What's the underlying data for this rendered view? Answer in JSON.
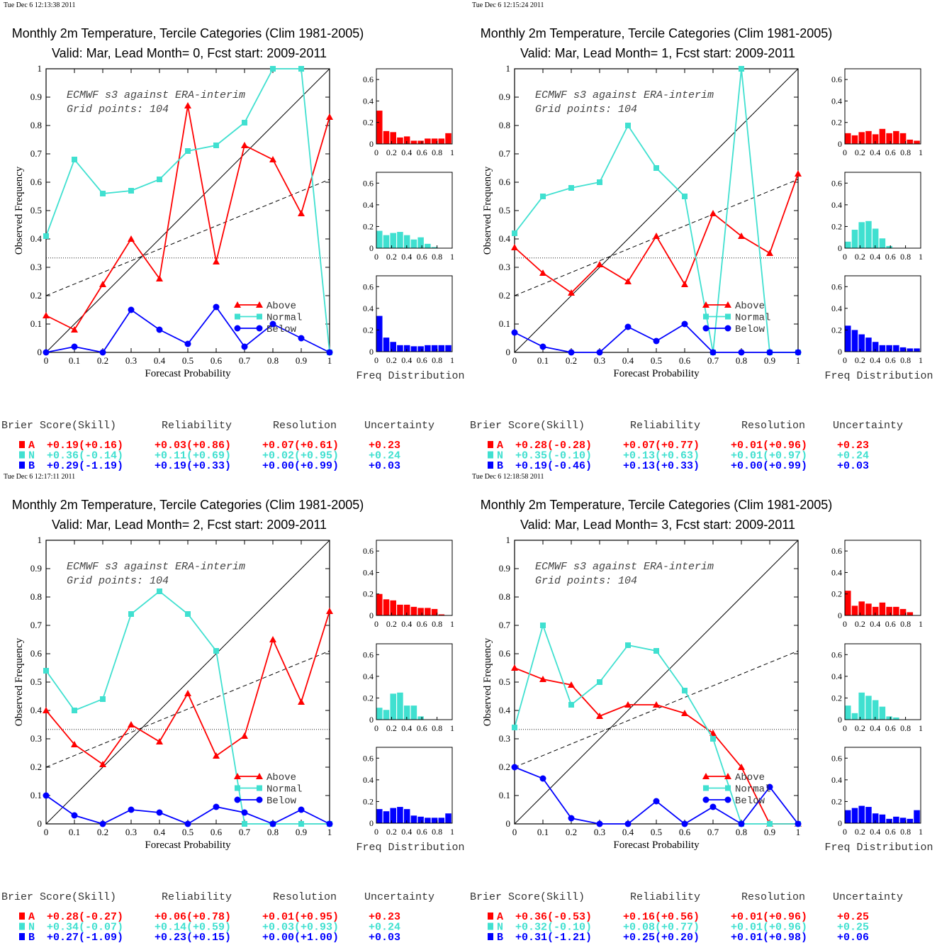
{
  "colors": {
    "above": "#ff0000",
    "normal": "#40e0d0",
    "below": "#0000ff",
    "axis": "#000000"
  },
  "panels": [
    {
      "timestamp": "Tue Dec  6 12:13:38 2011",
      "title1": "Monthly 2m Temperature, Tercile Categories (Clim 1981-2005)",
      "title2": "Valid: Mar, Lead Month= 0, Fcst start: 2009-2011",
      "note1": "ECMWF s3 against ERA-interim",
      "note2": "Grid points:  104",
      "ylabel": "Observed Frequency",
      "xlabel": "Forecast Probability",
      "freq_label": "Freq Distribution",
      "legend": {
        "above": "Above",
        "normal": "Normal",
        "below": "Below"
      },
      "score_header": {
        "bs": "Brier Score(Skill)",
        "rel": "Reliability",
        "res": "Resolution",
        "unc": "Uncertainty"
      },
      "scores": [
        {
          "cat": "A",
          "bs": "+0.19(+0.16)",
          "rel": "+0.03(+0.86)",
          "res": "+0.07(+0.61)",
          "unc": "+0.23"
        },
        {
          "cat": "N",
          "bs": "+0.36(-0.14)",
          "rel": "+0.11(+0.69)",
          "res": "+0.02(+0.95)",
          "unc": "+0.24"
        },
        {
          "cat": "B",
          "bs": "+0.29(-1.19)",
          "rel": "+0.19(+0.33)",
          "res": "+0.00(+0.99)",
          "unc": "+0.03"
        }
      ],
      "chart_data": {
        "type": "line",
        "x": [
          0,
          0.1,
          0.2,
          0.3,
          0.4,
          0.5,
          0.6,
          0.7,
          0.8,
          0.9,
          1.0
        ],
        "xlim": [
          0,
          1
        ],
        "ylim": [
          0,
          1
        ],
        "xticks": [
          "0",
          "0.1",
          "0.2",
          "0.3",
          "0.4",
          "0.5",
          "0.6",
          "0.7",
          "0.8",
          "0.9",
          "1"
        ],
        "yticks": [
          "0",
          "0.1",
          "0.2",
          "0.3",
          "0.4",
          "0.5",
          "0.6",
          "0.7",
          "0.8",
          "0.9",
          "1"
        ],
        "climatology": 0.333,
        "skill_line": [
          0.2,
          0.61
        ],
        "series": [
          {
            "name": "Above",
            "values": [
              0.13,
              0.08,
              0.24,
              0.4,
              0.26,
              0.87,
              0.32,
              0.73,
              0.68,
              0.49,
              0.83
            ]
          },
          {
            "name": "Normal",
            "values": [
              0.41,
              0.68,
              0.56,
              0.57,
              0.61,
              0.71,
              0.73,
              0.81,
              1.0,
              1.0,
              0.0
            ]
          },
          {
            "name": "Below",
            "values": [
              0.0,
              0.02,
              0.0,
              0.15,
              0.08,
              0.03,
              0.16,
              0.02,
              0.1,
              0.05,
              0.0
            ]
          }
        ],
        "hist_ylim": [
          0,
          0.7
        ],
        "hist_yticks": [
          "0",
          "0.2",
          "0.4",
          "0.6"
        ],
        "hist_xticks": [
          "0",
          "0.2",
          "0.4",
          "0.6",
          "0.8",
          "1"
        ],
        "histograms": [
          {
            "name": "Above",
            "values": [
              0.31,
              0.12,
              0.11,
              0.06,
              0.07,
              0.03,
              0.03,
              0.05,
              0.05,
              0.05,
              0.1
            ]
          },
          {
            "name": "Normal",
            "values": [
              0.16,
              0.12,
              0.14,
              0.15,
              0.12,
              0.08,
              0.1,
              0.04,
              0.01,
              0.0,
              0.0
            ]
          },
          {
            "name": "Below",
            "values": [
              0.33,
              0.13,
              0.09,
              0.06,
              0.06,
              0.05,
              0.05,
              0.06,
              0.06,
              0.06,
              0.06
            ]
          }
        ]
      }
    },
    {
      "timestamp": "Tue Dec  6 12:15:24 2011",
      "title1": "Monthly 2m Temperature, Tercile Categories (Clim 1981-2005)",
      "title2": "Valid: Mar, Lead Month= 1, Fcst start: 2009-2011",
      "note1": "ECMWF s3 against ERA-interim",
      "note2": "Grid points:  104",
      "ylabel": "Observed Frequency",
      "xlabel": "Forecast Probability",
      "freq_label": "Freq Distribution",
      "legend": {
        "above": "Above",
        "normal": "Normal",
        "below": "Below"
      },
      "score_header": {
        "bs": "Brier Score(Skill)",
        "rel": "Reliability",
        "res": "Resolution",
        "unc": "Uncertainty"
      },
      "scores": [
        {
          "cat": "A",
          "bs": "+0.28(-0.28)",
          "rel": "+0.07(+0.77)",
          "res": "+0.01(+0.96)",
          "unc": "+0.23"
        },
        {
          "cat": "N",
          "bs": "+0.35(-0.10)",
          "rel": "+0.13(+0.63)",
          "res": "+0.01(+0.97)",
          "unc": "+0.24"
        },
        {
          "cat": "B",
          "bs": "+0.19(-0.46)",
          "rel": "+0.13(+0.33)",
          "res": "+0.00(+0.99)",
          "unc": "+0.03"
        }
      ],
      "chart_data": {
        "type": "line",
        "x": [
          0,
          0.1,
          0.2,
          0.3,
          0.4,
          0.5,
          0.6,
          0.7,
          0.8,
          0.9,
          1.0
        ],
        "xlim": [
          0,
          1
        ],
        "ylim": [
          0,
          1
        ],
        "xticks": [
          "0",
          "0.1",
          "0.2",
          "0.3",
          "0.4",
          "0.5",
          "0.6",
          "0.7",
          "0.8",
          "0.9",
          "1"
        ],
        "yticks": [
          "0",
          "0.1",
          "0.2",
          "0.3",
          "0.4",
          "0.5",
          "0.6",
          "0.7",
          "0.8",
          "0.9",
          "1"
        ],
        "climatology": 0.333,
        "skill_line": [
          0.2,
          0.61
        ],
        "series": [
          {
            "name": "Above",
            "values": [
              0.37,
              0.28,
              0.21,
              0.31,
              0.25,
              0.41,
              0.24,
              0.49,
              0.41,
              0.35,
              0.63
            ]
          },
          {
            "name": "Normal",
            "values": [
              0.42,
              0.55,
              0.58,
              0.6,
              0.8,
              0.65,
              0.55,
              0.0,
              1.0,
              0.0,
              0.0
            ]
          },
          {
            "name": "Below",
            "values": [
              0.07,
              0.02,
              0.0,
              0.0,
              0.09,
              0.04,
              0.1,
              0.0,
              0.0,
              0.0,
              0.0
            ]
          }
        ],
        "hist_ylim": [
          0,
          0.7
        ],
        "hist_yticks": [
          "0",
          "0.2",
          "0.4",
          "0.6"
        ],
        "hist_xticks": [
          "0",
          "0.2",
          "0.4",
          "0.6",
          "0.8",
          "1"
        ],
        "histograms": [
          {
            "name": "Above",
            "values": [
              0.1,
              0.08,
              0.11,
              0.12,
              0.09,
              0.14,
              0.1,
              0.12,
              0.1,
              0.04,
              0.03
            ]
          },
          {
            "name": "Normal",
            "values": [
              0.06,
              0.17,
              0.24,
              0.25,
              0.18,
              0.09,
              0.02,
              0.0,
              0.0,
              0.0,
              0.0
            ]
          },
          {
            "name": "Below",
            "values": [
              0.24,
              0.2,
              0.16,
              0.13,
              0.09,
              0.06,
              0.06,
              0.06,
              0.04,
              0.03,
              0.03
            ]
          }
        ]
      }
    },
    {
      "timestamp": "Tue Dec  6 12:17:11 2011",
      "title1": "Monthly 2m Temperature, Tercile Categories (Clim 1981-2005)",
      "title2": "Valid: Mar, Lead Month= 2, Fcst start: 2009-2011",
      "note1": "ECMWF s3 against ERA-interim",
      "note2": "Grid points:  104",
      "ylabel": "Observed Frequency",
      "xlabel": "Forecast Probability",
      "freq_label": "Freq Distribution",
      "legend": {
        "above": "Above",
        "normal": "Normal",
        "below": "Below"
      },
      "score_header": {
        "bs": "Brier Score(Skill)",
        "rel": "Reliability",
        "res": "Resolution",
        "unc": "Uncertainty"
      },
      "scores": [
        {
          "cat": "A",
          "bs": "+0.28(-0.27)",
          "rel": "+0.06(+0.78)",
          "res": "+0.01(+0.95)",
          "unc": "+0.23"
        },
        {
          "cat": "N",
          "bs": "+0.34(-0.07)",
          "rel": "+0.14(+0.59)",
          "res": "+0.03(+0.93)",
          "unc": "+0.24"
        },
        {
          "cat": "B",
          "bs": "+0.27(-1.09)",
          "rel": "+0.23(+0.15)",
          "res": "+0.00(+1.00)",
          "unc": "+0.03"
        }
      ],
      "chart_data": {
        "type": "line",
        "x": [
          0,
          0.1,
          0.2,
          0.3,
          0.4,
          0.5,
          0.6,
          0.7,
          0.8,
          0.9,
          1.0
        ],
        "xlim": [
          0,
          1
        ],
        "ylim": [
          0,
          1
        ],
        "xticks": [
          "0",
          "0.1",
          "0.2",
          "0.3",
          "0.4",
          "0.5",
          "0.6",
          "0.7",
          "0.8",
          "0.9",
          "1"
        ],
        "yticks": [
          "0",
          "0.1",
          "0.2",
          "0.3",
          "0.4",
          "0.5",
          "0.6",
          "0.7",
          "0.8",
          "0.9",
          "1"
        ],
        "climatology": 0.333,
        "skill_line": [
          0.2,
          0.61
        ],
        "series": [
          {
            "name": "Above",
            "values": [
              0.4,
              0.28,
              0.21,
              0.35,
              0.29,
              0.46,
              0.24,
              0.31,
              0.65,
              0.43,
              0.75
            ]
          },
          {
            "name": "Normal",
            "values": [
              0.54,
              0.4,
              0.44,
              0.74,
              0.82,
              0.74,
              0.61,
              0.0,
              0.0,
              0.0,
              0.0
            ]
          },
          {
            "name": "Below",
            "values": [
              0.1,
              0.03,
              0.0,
              0.05,
              0.04,
              0.0,
              0.06,
              0.04,
              0.0,
              0.05,
              0.0
            ]
          }
        ],
        "hist_ylim": [
          0,
          0.7
        ],
        "hist_yticks": [
          "0",
          "0.2",
          "0.4",
          "0.6"
        ],
        "hist_xticks": [
          "0",
          "0.2",
          "0.4",
          "0.6",
          "0.8",
          "1"
        ],
        "histograms": [
          {
            "name": "Above",
            "values": [
              0.2,
              0.15,
              0.14,
              0.1,
              0.1,
              0.08,
              0.07,
              0.07,
              0.06,
              0.01,
              0.0
            ]
          },
          {
            "name": "Normal",
            "values": [
              0.11,
              0.09,
              0.24,
              0.25,
              0.13,
              0.13,
              0.03,
              0.0,
              0.0,
              0.0,
              0.0
            ]
          },
          {
            "name": "Below",
            "values": [
              0.13,
              0.11,
              0.14,
              0.15,
              0.13,
              0.07,
              0.06,
              0.05,
              0.05,
              0.05,
              0.09
            ]
          }
        ]
      }
    },
    {
      "timestamp": "Tue Dec  6 12:18:58 2011",
      "title1": "Monthly 2m Temperature, Tercile Categories (Clim 1981-2005)",
      "title2": "Valid: Mar, Lead Month= 3, Fcst start: 2009-2011",
      "note1": "ECMWF s3 against ERA-interim",
      "note2": "Grid points:  104",
      "ylabel": "Observed Frequency",
      "xlabel": "Forecast Probability",
      "freq_label": "Freq Distribution",
      "legend": {
        "above": "Above",
        "normal": "Normal",
        "below": "Below"
      },
      "score_header": {
        "bs": "Brier Score(Skill)",
        "rel": "Reliability",
        "res": "Resolution",
        "unc": "Uncertainty"
      },
      "scores": [
        {
          "cat": "A",
          "bs": "+0.36(-0.53)",
          "rel": "+0.16(+0.56)",
          "res": "+0.01(+0.96)",
          "unc": "+0.25"
        },
        {
          "cat": "N",
          "bs": "+0.32(-0.10)",
          "rel": "+0.08(+0.77)",
          "res": "+0.01(+0.96)",
          "unc": "+0.25"
        },
        {
          "cat": "B",
          "bs": "+0.31(-1.21)",
          "rel": "+0.25(+0.20)",
          "res": "+0.01(+0.98)",
          "unc": "+0.06"
        }
      ],
      "chart_data": {
        "type": "line",
        "x": [
          0,
          0.1,
          0.2,
          0.3,
          0.4,
          0.5,
          0.6,
          0.7,
          0.8,
          0.9,
          1.0
        ],
        "xlim": [
          0,
          1
        ],
        "ylim": [
          0,
          1
        ],
        "xticks": [
          "0",
          "0.1",
          "0.2",
          "0.3",
          "0.4",
          "0.5",
          "0.6",
          "0.7",
          "0.8",
          "0.9",
          "1"
        ],
        "yticks": [
          "0",
          "0.1",
          "0.2",
          "0.3",
          "0.4",
          "0.5",
          "0.6",
          "0.7",
          "0.8",
          "0.9",
          "1"
        ],
        "climatology": 0.333,
        "skill_line": [
          0.2,
          0.61
        ],
        "series": [
          {
            "name": "Above",
            "values": [
              0.55,
              0.51,
              0.49,
              0.38,
              0.42,
              0.42,
              0.39,
              0.32,
              0.2,
              0.0,
              0.0
            ]
          },
          {
            "name": "Normal",
            "values": [
              0.34,
              0.7,
              0.42,
              0.5,
              0.63,
              0.61,
              0.47,
              0.3,
              0.0,
              0.0,
              0.0
            ]
          },
          {
            "name": "Below",
            "values": [
              0.2,
              0.16,
              0.02,
              0.0,
              0.0,
              0.08,
              0.0,
              0.06,
              0.0,
              0.13,
              0.0
            ]
          }
        ],
        "hist_ylim": [
          0,
          0.7
        ],
        "hist_yticks": [
          "0",
          "0.2",
          "0.4",
          "0.6"
        ],
        "hist_xticks": [
          "0",
          "0.2",
          "0.4",
          "0.6",
          "0.8",
          "1"
        ],
        "histograms": [
          {
            "name": "Above",
            "values": [
              0.23,
              0.09,
              0.13,
              0.11,
              0.08,
              0.12,
              0.08,
              0.08,
              0.06,
              0.03,
              0.0
            ]
          },
          {
            "name": "Normal",
            "values": [
              0.13,
              0.06,
              0.25,
              0.22,
              0.18,
              0.12,
              0.03,
              0.02,
              0.0,
              0.0,
              0.0
            ]
          },
          {
            "name": "Below",
            "values": [
              0.12,
              0.14,
              0.16,
              0.15,
              0.09,
              0.08,
              0.04,
              0.06,
              0.05,
              0.04,
              0.12
            ]
          }
        ]
      }
    }
  ]
}
